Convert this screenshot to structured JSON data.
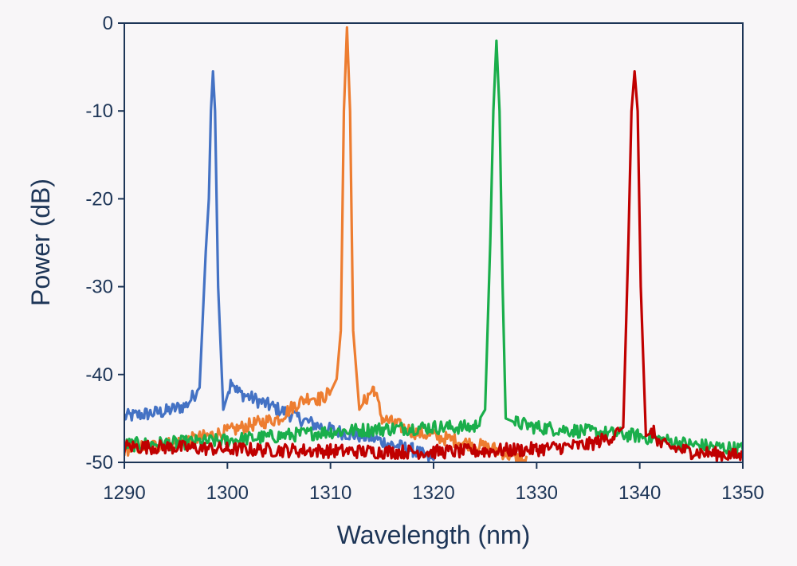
{
  "chart_data": {
    "type": "line",
    "title": "",
    "xlabel": "Wavelength (nm)",
    "ylabel": "Power (dB)",
    "xlim": [
      1290,
      1350
    ],
    "ylim": [
      -50,
      0
    ],
    "xticks": [
      1290,
      1300,
      1310,
      1320,
      1330,
      1340,
      1350
    ],
    "yticks": [
      0,
      -10,
      -20,
      -30,
      -40,
      -50
    ],
    "grid": false,
    "legend": "none",
    "series": [
      {
        "color": "#4472c4",
        "peak_nm": 1298.6,
        "peak_db": -5.5,
        "x": [
          1290,
          1292,
          1294,
          1296,
          1297.3,
          1297.9,
          1298.2,
          1298.4,
          1298.6,
          1298.8,
          1299.1,
          1299.6,
          1300.1,
          1300.4,
          1301,
          1302,
          1304,
          1306,
          1308,
          1310,
          1312,
          1314,
          1316,
          1318,
          1320
        ],
        "y": [
          -44.8,
          -44.5,
          -44.2,
          -43.5,
          -41.5,
          -26,
          -20,
          -10,
          -5.5,
          -10,
          -30,
          -44,
          -42,
          -40.5,
          -42,
          -42.5,
          -43.5,
          -44.5,
          -45.5,
          -46.3,
          -46.8,
          -47.2,
          -48,
          -48.6,
          -49.8
        ]
      },
      {
        "color": "#ed7d31",
        "peak_nm": 1311.6,
        "peak_db": -0.5,
        "x": [
          1290,
          1295,
          1300,
          1303,
          1305,
          1306.5,
          1308,
          1309,
          1310,
          1310.6,
          1311,
          1311.3,
          1311.6,
          1311.9,
          1312.2,
          1312.8,
          1313.6,
          1314.2,
          1315,
          1316,
          1318,
          1322,
          1326,
          1329
        ],
        "y": [
          -48.5,
          -47.8,
          -46.5,
          -45.5,
          -45,
          -43.5,
          -42.5,
          -42.8,
          -42,
          -40.5,
          -35,
          -10,
          -0.5,
          -10,
          -35,
          -44,
          -42.5,
          -41.5,
          -45,
          -45.5,
          -46.5,
          -47.5,
          -48.5,
          -50
        ]
      },
      {
        "color": "#1aae4b",
        "peak_nm": 1326.1,
        "peak_db": -2,
        "x": [
          1290,
          1295,
          1300,
          1305,
          1310,
          1315,
          1320,
          1324,
          1325,
          1325.5,
          1325.8,
          1326.1,
          1326.4,
          1326.7,
          1327,
          1328,
          1330,
          1335,
          1340,
          1345,
          1350
        ],
        "y": [
          -48,
          -47.8,
          -47.5,
          -47,
          -46.5,
          -46.2,
          -46,
          -46,
          -44,
          -25,
          -10,
          -2,
          -10,
          -30,
          -45,
          -45.5,
          -46,
          -46.5,
          -47,
          -48,
          -48.5
        ]
      },
      {
        "color": "#c00000",
        "peak_nm": 1339.5,
        "peak_db": -5.5,
        "x": [
          1290,
          1295,
          1300,
          1305,
          1310,
          1315,
          1320,
          1325,
          1330,
          1335,
          1337.5,
          1338.4,
          1338.9,
          1339.2,
          1339.5,
          1339.8,
          1340.1,
          1340.6,
          1341.3,
          1342,
          1345,
          1350
        ],
        "y": [
          -48.2,
          -48.3,
          -48.5,
          -48.6,
          -48.7,
          -48.8,
          -48.8,
          -48.7,
          -48.5,
          -48,
          -47,
          -46,
          -25,
          -10,
          -5.5,
          -10,
          -30,
          -47,
          -46.5,
          -48,
          -48.8,
          -49.3
        ]
      }
    ]
  }
}
